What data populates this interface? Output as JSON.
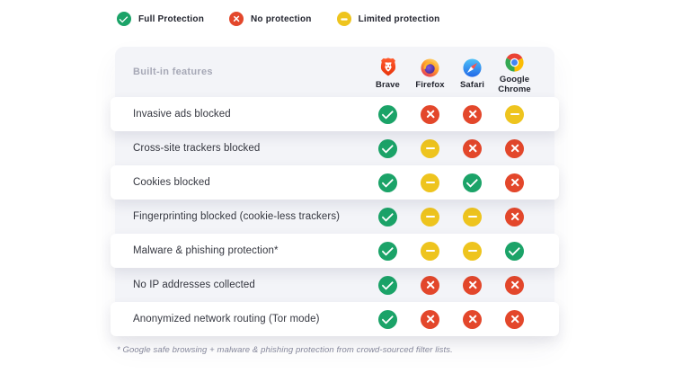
{
  "legend": {
    "items": [
      {
        "status": "full",
        "label": "Full Protection"
      },
      {
        "status": "none",
        "label": "No protection"
      },
      {
        "status": "limited",
        "label": "Limited protection"
      }
    ]
  },
  "table": {
    "header_label": "Built-in features",
    "browsers": [
      {
        "name": "Brave",
        "icon": "brave-icon"
      },
      {
        "name": "Firefox",
        "icon": "firefox-icon"
      },
      {
        "name": "Safari",
        "icon": "safari-icon"
      },
      {
        "name": "Google Chrome",
        "icon": "chrome-icon"
      }
    ],
    "rows": [
      {
        "feature": "Invasive ads blocked",
        "values": [
          "full",
          "none",
          "none",
          "limited"
        ]
      },
      {
        "feature": "Cross-site trackers blocked",
        "values": [
          "full",
          "limited",
          "none",
          "none"
        ]
      },
      {
        "feature": "Cookies blocked",
        "values": [
          "full",
          "limited",
          "full",
          "none"
        ]
      },
      {
        "feature": "Fingerprinting blocked (cookie-less trackers)",
        "values": [
          "full",
          "limited",
          "limited",
          "none"
        ]
      },
      {
        "feature": "Malware & phishing protection*",
        "values": [
          "full",
          "limited",
          "limited",
          "full"
        ]
      },
      {
        "feature": "No IP addresses collected",
        "values": [
          "full",
          "none",
          "none",
          "none"
        ]
      },
      {
        "feature": "Anonymized network routing (Tor mode)",
        "values": [
          "full",
          "none",
          "none",
          "none"
        ]
      }
    ]
  },
  "footnote": "* Google safe browsing + malware & phishing protection from crowd-sourced filter lists.",
  "status_colors": {
    "full": "#1BA368",
    "none": "#E3472B",
    "limited": "#EEC41E"
  }
}
